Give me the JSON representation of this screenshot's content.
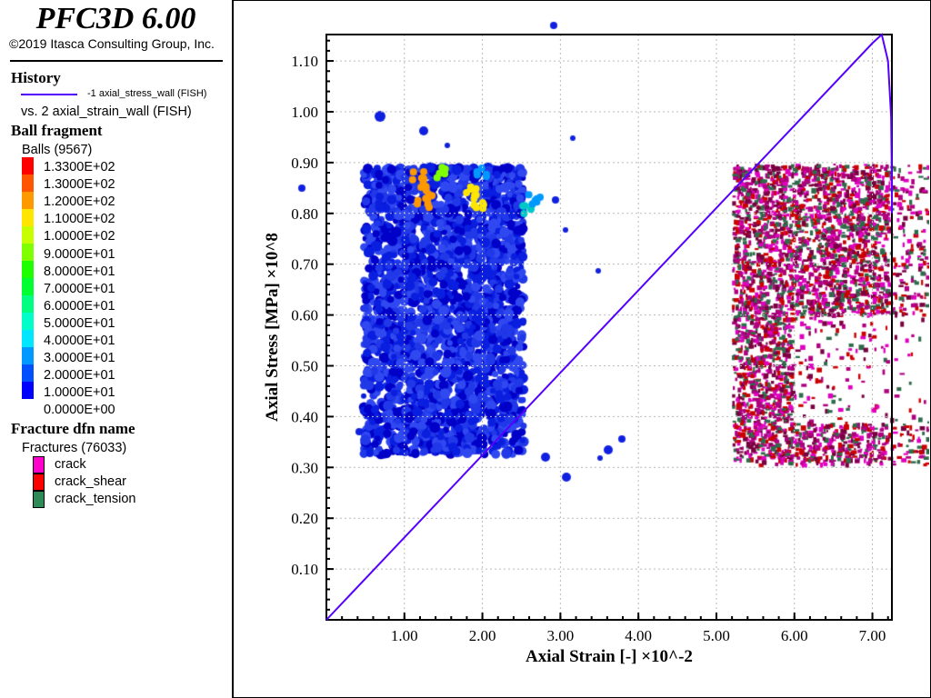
{
  "header": {
    "title": "PFC3D 6.00",
    "copyright": "©2019 Itasca Consulting Group, Inc."
  },
  "history": {
    "heading": "History",
    "series_label": "-1 axial_stress_wall (FISH)",
    "vs_label": "vs. 2 axial_strain_wall (FISH)",
    "line_color": "#5500ff"
  },
  "ball_fragment": {
    "heading": "Ball fragment",
    "count_label": "Balls (9567)",
    "levels": [
      "1.3300E+02",
      "1.3000E+02",
      "1.2000E+02",
      "1.1000E+02",
      "1.0000E+02",
      "9.0000E+01",
      "8.0000E+01",
      "7.0000E+01",
      "6.0000E+01",
      "5.0000E+01",
      "4.0000E+01",
      "3.0000E+01",
      "2.0000E+01",
      "1.0000E+01",
      "0.0000E+00"
    ],
    "colors": [
      "#ff0000",
      "#ff5500",
      "#ff9900",
      "#ffe600",
      "#c8ff00",
      "#80ff00",
      "#20ff00",
      "#00ff30",
      "#00ff80",
      "#00ffc8",
      "#00e6ff",
      "#0099ff",
      "#0050ff",
      "#0000ff"
    ]
  },
  "fracture": {
    "heading": "Fracture dfn name",
    "count_label": "Fractures (76033)",
    "items": [
      {
        "label": "crack",
        "color": "#ff00cc"
      },
      {
        "label": "crack_shear",
        "color": "#ff0000"
      },
      {
        "label": "crack_tension",
        "color": "#2e8b57"
      }
    ]
  },
  "chart_data": {
    "type": "line",
    "xlabel": "Axial Strain [-] ×10^-2",
    "ylabel": "Axial Stress [MPa] ×10^8",
    "xlim": [
      0,
      7.25
    ],
    "ylim": [
      0,
      1.152
    ],
    "xticks": [
      "1.00",
      "2.00",
      "3.00",
      "4.00",
      "5.00",
      "6.00",
      "7.00"
    ],
    "yticks": [
      "0.10",
      "0.20",
      "0.30",
      "0.40",
      "0.50",
      "0.60",
      "0.70",
      "0.80",
      "0.90",
      "1.00",
      "1.10"
    ],
    "grid": true,
    "series": [
      {
        "color": "#5500ff",
        "x": [
          0,
          7.0,
          7.12,
          7.2,
          7.24,
          7.25,
          7.25
        ],
        "y": [
          0,
          1.135,
          1.152,
          1.1,
          0.99,
          0.86,
          0.8
        ]
      }
    ]
  }
}
